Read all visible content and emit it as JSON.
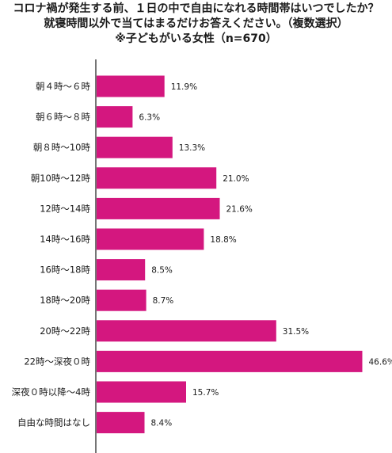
{
  "chart_data": {
    "type": "bar",
    "orientation": "horizontal",
    "title_lines": [
      "コロナ禍が発生する前、１日の中で自由になれる時間帯はいつでしたか？",
      "就寝時間以外で当てはまるだけお答えください。（複数選択）",
      "※子どもがいる女性（n=670）"
    ],
    "categories": [
      "朝４時〜６時",
      "朝６時〜８時",
      "朝８時〜10時",
      "朝10時〜12時",
      "12時〜14時",
      "14時〜16時",
      "16時〜18時",
      "18時〜20時",
      "20時〜22時",
      "22時〜深夜０時",
      "深夜０時以降〜4時",
      "自由な時間はなし"
    ],
    "values": [
      11.9,
      6.3,
      13.3,
      21.0,
      21.6,
      18.8,
      8.5,
      8.7,
      31.5,
      46.6,
      15.7,
      8.4
    ],
    "value_labels": [
      "11.9%",
      "6.3%",
      "13.3%",
      "21.0%",
      "21.6%",
      "18.8%",
      "8.5%",
      "8.7%",
      "31.5%",
      "46.6%",
      "15.7%",
      "8.4%"
    ],
    "xlim": [
      0,
      50
    ],
    "bar_color": "#d4177f",
    "grid": false,
    "legend": "none"
  }
}
